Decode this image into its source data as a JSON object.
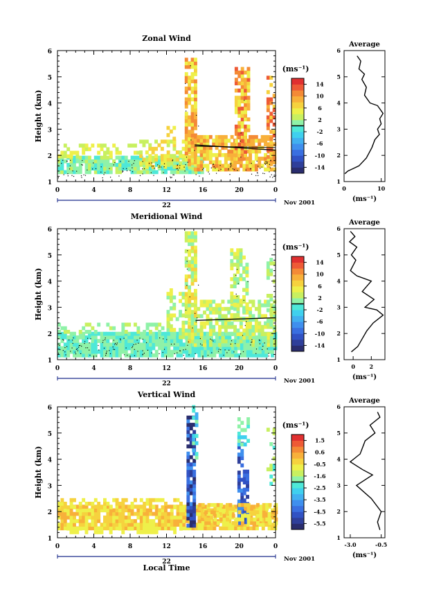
{
  "chart_data": [
    {
      "type": "heatmap",
      "title": "Zonal Wind",
      "ylabel": "Height (km)",
      "ylim": [
        1,
        6
      ],
      "y_ticks": [
        "1",
        "2",
        "3",
        "4",
        "5",
        "6"
      ],
      "xlim": [
        0,
        24
      ],
      "x_ticks": [
        "0",
        "4",
        "8",
        "12",
        "16",
        "20",
        "0"
      ],
      "date_label": "22",
      "date_suffix": "Nov 2001",
      "colorbar": {
        "unit": "(ms⁻¹)",
        "ticks": [
          "14",
          "10",
          "6",
          "2",
          "-2",
          "-6",
          "-10",
          "-14"
        ],
        "range": [
          -16,
          16
        ]
      },
      "average": {
        "title": "Average",
        "xlabel": "(ms⁻¹)",
        "x_ticks": [
          "0",
          "10"
        ],
        "xlim": [
          0,
          11
        ],
        "ylim": [
          1,
          6
        ],
        "y_ticks": [
          "1",
          "2",
          "3",
          "4",
          "5",
          "6"
        ],
        "profile": [
          [
            0.2,
            1.3
          ],
          [
            1.0,
            1.4
          ],
          [
            4.0,
            1.6
          ],
          [
            6.0,
            1.9
          ],
          [
            7.5,
            2.3
          ],
          [
            8.3,
            2.6
          ],
          [
            9.5,
            2.8
          ],
          [
            9.0,
            3.0
          ],
          [
            10.0,
            3.2
          ],
          [
            9.6,
            3.4
          ],
          [
            10.5,
            3.6
          ],
          [
            9.0,
            3.9
          ],
          [
            7.0,
            4.0
          ],
          [
            5.5,
            4.3
          ],
          [
            6.0,
            4.6
          ],
          [
            4.8,
            4.9
          ],
          [
            5.5,
            5.1
          ],
          [
            4.0,
            5.3
          ],
          [
            4.5,
            5.6
          ],
          [
            3.5,
            5.8
          ]
        ]
      }
    },
    {
      "type": "heatmap",
      "title": "Meridional Wind",
      "ylabel": "Height (km)",
      "ylim": [
        1,
        6
      ],
      "y_ticks": [
        "1",
        "2",
        "3",
        "4",
        "5",
        "6"
      ],
      "xlim": [
        0,
        24
      ],
      "x_ticks": [
        "0",
        "4",
        "8",
        "12",
        "16",
        "20",
        "0"
      ],
      "date_label": "22",
      "date_suffix": "Nov 2001",
      "colorbar": {
        "unit": "(ms⁻¹)",
        "ticks": [
          "14",
          "10",
          "6",
          "2",
          "-2",
          "-6",
          "-10",
          "-14"
        ],
        "range": [
          -16,
          16
        ]
      },
      "average": {
        "title": "Average",
        "xlabel": "(ms⁻¹)",
        "x_ticks": [
          "0",
          "2"
        ],
        "xlim": [
          -1,
          3.5
        ],
        "ylim": [
          1,
          6
        ],
        "y_ticks": [
          "1",
          "2",
          "3",
          "4",
          "5",
          "6"
        ],
        "profile": [
          [
            -0.2,
            1.3
          ],
          [
            0.5,
            1.5
          ],
          [
            1.0,
            1.8
          ],
          [
            1.5,
            2.1
          ],
          [
            2.2,
            2.4
          ],
          [
            3.3,
            2.7
          ],
          [
            2.6,
            2.9
          ],
          [
            1.3,
            3.0
          ],
          [
            2.3,
            3.3
          ],
          [
            1.0,
            3.6
          ],
          [
            2.0,
            4.0
          ],
          [
            0.4,
            4.2
          ],
          [
            -0.3,
            4.4
          ],
          [
            0.3,
            4.8
          ],
          [
            -0.2,
            5.0
          ],
          [
            0.4,
            5.3
          ],
          [
            -0.4,
            5.5
          ],
          [
            0.2,
            5.7
          ],
          [
            -0.3,
            5.9
          ]
        ]
      }
    },
    {
      "type": "heatmap",
      "title": "Vertical Wind",
      "ylabel": "Height (km)",
      "xlabel": "Local Time",
      "ylim": [
        1,
        6
      ],
      "y_ticks": [
        "1",
        "2",
        "3",
        "4",
        "5",
        "6"
      ],
      "xlim": [
        0,
        24
      ],
      "x_ticks": [
        "0",
        "4",
        "8",
        "12",
        "16",
        "20",
        "0"
      ],
      "date_label": "22",
      "date_suffix": "Nov 2001",
      "colorbar": {
        "unit": "(ms⁻¹)",
        "ticks": [
          "1.5",
          "0.6",
          "-0.5",
          "-1.6",
          "-2.5",
          "-3.5",
          "-4.5",
          "-5.5"
        ],
        "range": [
          -6,
          2
        ]
      },
      "average": {
        "title": "Average",
        "xlabel": "(ms⁻¹)",
        "x_ticks": [
          "-3.0",
          "-0.5"
        ],
        "xlim": [
          -3.5,
          -0.2
        ],
        "ylim": [
          1,
          6
        ],
        "y_ticks": [
          "1",
          "2",
          "3",
          "4",
          "5",
          "6"
        ],
        "profile": [
          [
            -0.6,
            1.3
          ],
          [
            -0.8,
            1.6
          ],
          [
            -0.5,
            2.0
          ],
          [
            -1.3,
            2.5
          ],
          [
            -2.5,
            3.0
          ],
          [
            -1.2,
            3.4
          ],
          [
            -2.0,
            3.6
          ],
          [
            -3.0,
            3.9
          ],
          [
            -2.2,
            4.2
          ],
          [
            -1.8,
            4.7
          ],
          [
            -1.0,
            5.0
          ],
          [
            -1.4,
            5.3
          ],
          [
            -0.6,
            5.6
          ],
          [
            -0.8,
            5.8
          ]
        ]
      }
    }
  ]
}
